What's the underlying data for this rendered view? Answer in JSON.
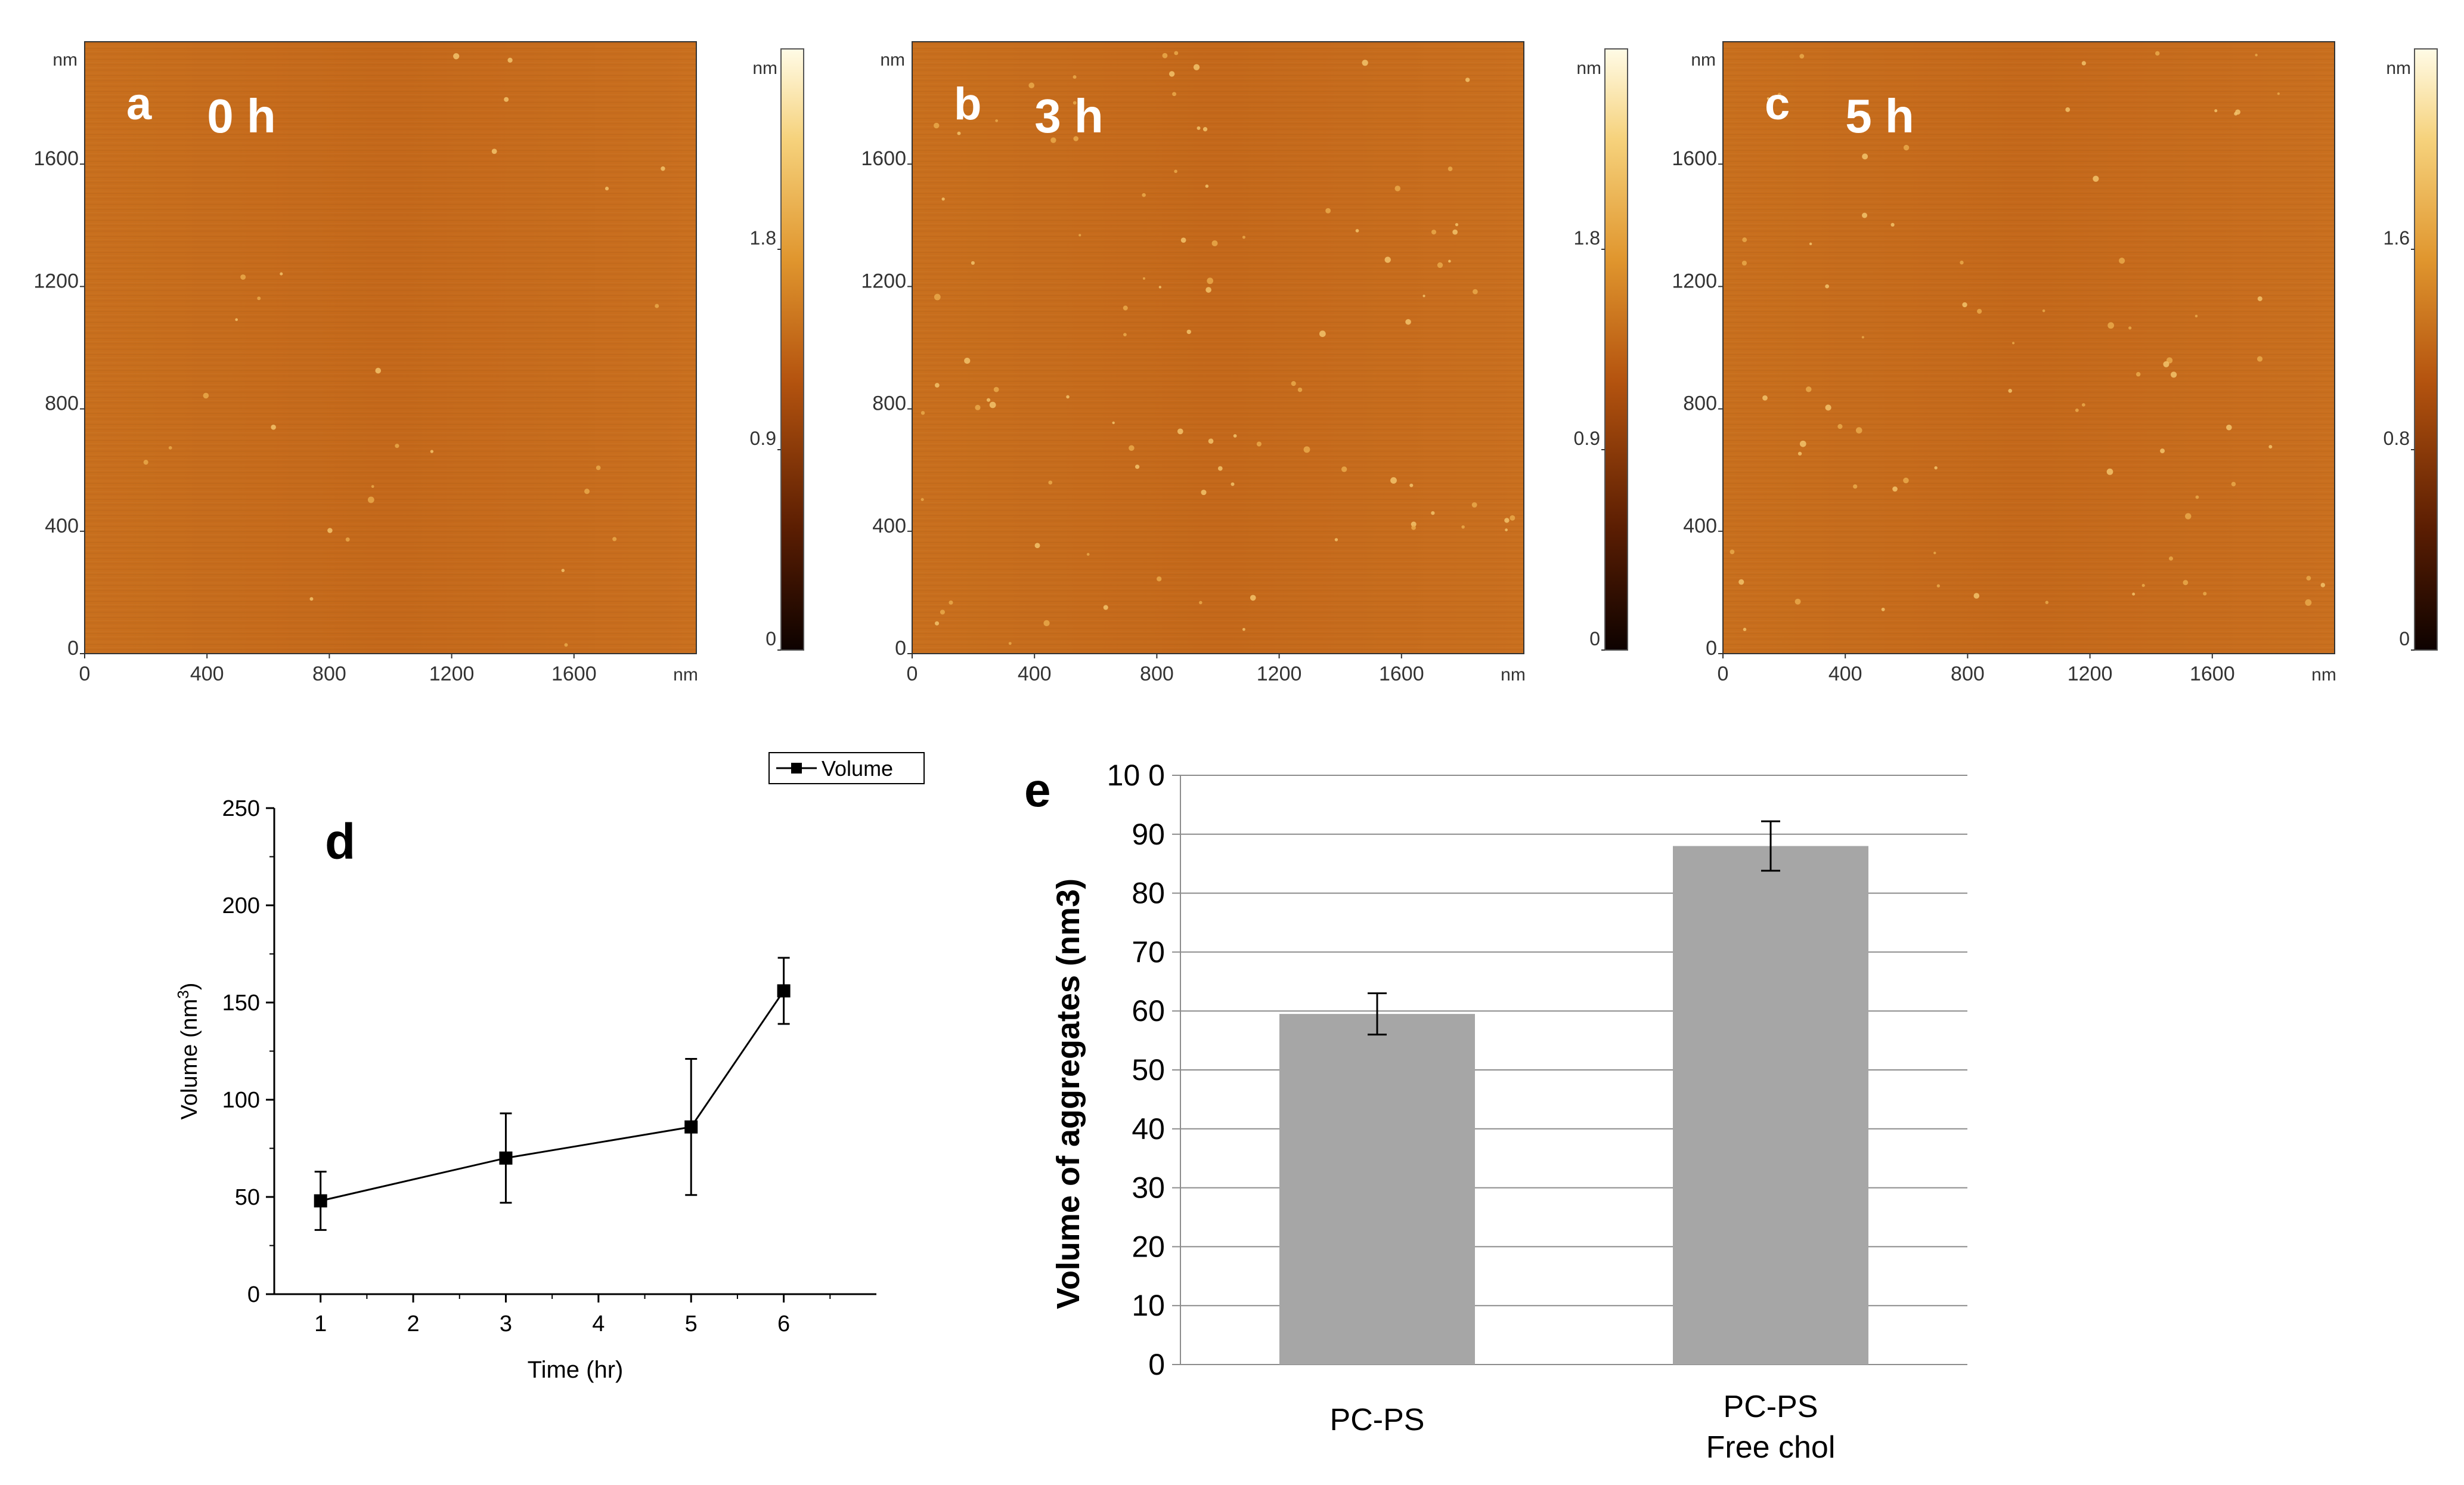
{
  "afm_panels": [
    {
      "letter": "a",
      "time_label": "0 h",
      "y_unit": "nm",
      "y_ticks": [
        "1600",
        "1200",
        "800",
        "400",
        "0"
      ],
      "x_ticks": [
        "0",
        "400",
        "800",
        "1200",
        "1600"
      ],
      "x_unit": "nm",
      "colorbar_unit": "nm",
      "colorbar_ticks": [
        "1.8",
        "0.9",
        "0"
      ],
      "colorbar_max": 2.7,
      "colorbar_tick_values": [
        1.8,
        0.9,
        0
      ],
      "scan_range_nm": 2000
    },
    {
      "letter": "b",
      "time_label": "3 h",
      "y_unit": "nm",
      "y_ticks": [
        "1600",
        "1200",
        "800",
        "400",
        "0"
      ],
      "x_ticks": [
        "0",
        "400",
        "800",
        "1200",
        "1600"
      ],
      "x_unit": "nm",
      "colorbar_unit": "nm",
      "colorbar_ticks": [
        "1.8",
        "0.9",
        "0"
      ],
      "colorbar_max": 2.7,
      "colorbar_tick_values": [
        1.8,
        0.9,
        0
      ],
      "scan_range_nm": 2000
    },
    {
      "letter": "c",
      "time_label": "5 h",
      "y_unit": "nm",
      "y_ticks": [
        "1600",
        "1200",
        "800",
        "400",
        "0"
      ],
      "x_ticks": [
        "0",
        "400",
        "800",
        "1200",
        "1600"
      ],
      "x_unit": "nm",
      "colorbar_unit": "nm",
      "colorbar_ticks": [
        "1.6",
        "0.8",
        "0"
      ],
      "colorbar_max": 2.4,
      "colorbar_tick_values": [
        1.6,
        0.8,
        0
      ],
      "scan_range_nm": 2000
    }
  ],
  "chart_data": [
    {
      "panel": "d",
      "type": "line",
      "title": "",
      "xlabel": "Time (hr)",
      "ylabel_main": "Volume (nm",
      "ylabel_sup": "3",
      "ylabel_end": ")",
      "x": [
        1,
        3,
        5,
        6
      ],
      "series": [
        {
          "name": "Volume",
          "values": [
            48,
            70,
            86,
            156
          ],
          "errors": [
            15,
            23,
            35,
            17
          ]
        }
      ],
      "xlim": [
        0.5,
        7
      ],
      "ylim": [
        0,
        250
      ],
      "x_ticks": [
        1,
        2,
        3,
        4,
        5,
        6
      ],
      "y_ticks": [
        0,
        50,
        100,
        150,
        200,
        250
      ],
      "legend_label": "Volume",
      "legend_position": "top-right",
      "grid": false
    },
    {
      "panel": "e",
      "type": "bar",
      "title": "",
      "ylabel": "Volume of aggregates (nm3)",
      "categories": [
        "PC-PS",
        "PC-PS\nFree chol"
      ],
      "category_lines": [
        [
          "PC-PS"
        ],
        [
          "PC-PS",
          "Free chol"
        ]
      ],
      "values": [
        59.5,
        88
      ],
      "errors": [
        3.5,
        4.2
      ],
      "ylim": [
        0,
        100
      ],
      "y_ticks": [
        0,
        10,
        20,
        30,
        40,
        50,
        60,
        70,
        80,
        90,
        100
      ],
      "y_tick_labels": [
        "0",
        "10",
        "20",
        "30",
        "40",
        "50",
        "60",
        "70",
        "80",
        "90",
        "10 0"
      ],
      "grid": true,
      "bar_color": "#a6a6a6"
    }
  ]
}
